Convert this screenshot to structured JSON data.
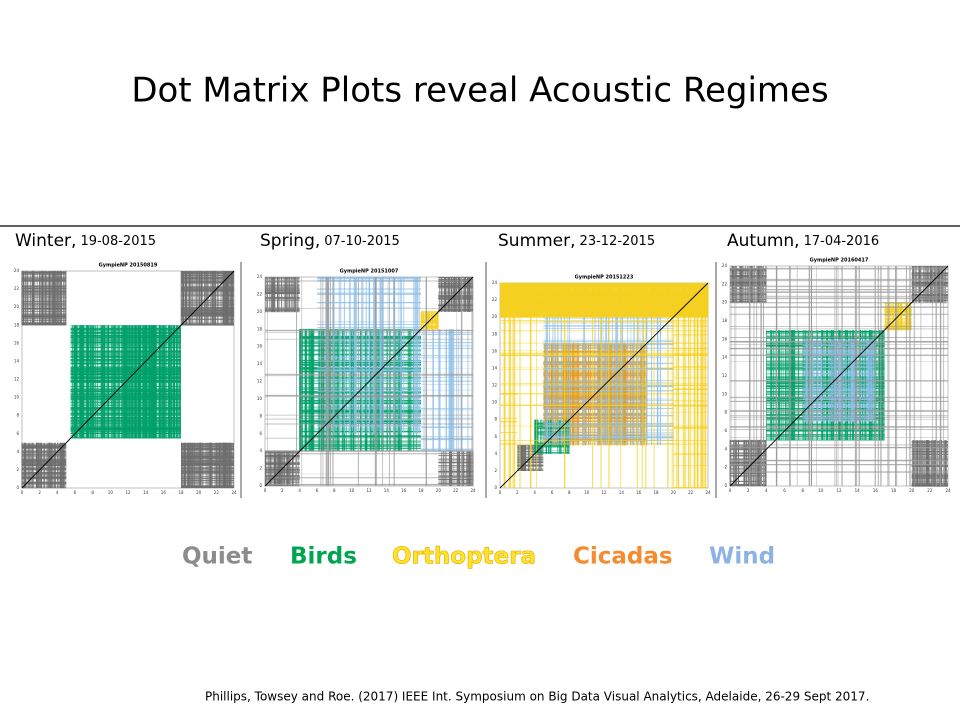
{
  "title": "Dot Matrix Plots reveal Acoustic Regimes",
  "panels": [
    {
      "season": "Winter,",
      "date": "19-08-2015",
      "plot_title": "GympieNP  20150819"
    },
    {
      "season": "Spring,",
      "date": "07-10-2015",
      "plot_title": "GympieNP  20151007"
    },
    {
      "season": "Summer,",
      "date": "23-12-2015",
      "plot_title": "GympieNP  20151223"
    },
    {
      "season": "Autumn,",
      "date": "17-04-2016",
      "plot_title": "GympieNP  20160417"
    }
  ],
  "axis_ticks": [
    0,
    2,
    4,
    6,
    8,
    10,
    12,
    14,
    16,
    18,
    20,
    22,
    24
  ],
  "legend": [
    {
      "label": "Quiet",
      "color": "#8c8c8c"
    },
    {
      "label": "Birds",
      "color": "#00a550"
    },
    {
      "label": "Orthoptera",
      "color": "#ffe22a"
    },
    {
      "label": "Cicadas",
      "color": "#f58a2e"
    },
    {
      "label": "Wind",
      "color": "#8db3e2"
    }
  ],
  "citation": "Phillips, Towsey and Roe. (2017)  IEEE Int. Symposium on Big Data Visual Analytics, Adelaide, 26-29 Sept 2017."
}
